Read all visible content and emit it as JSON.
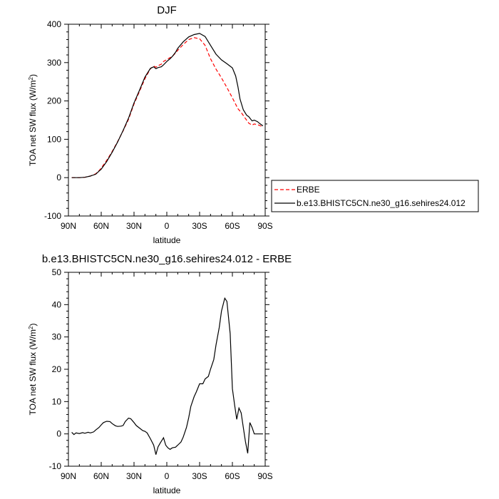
{
  "chart_data": [
    {
      "type": "line",
      "title": "DJF",
      "ylabel": "TOA net SW flux (W/m",
      "ylabel_sup": "2",
      "ylabel_tail": ")",
      "xlabel": "latitude",
      "xlim": [
        90,
        -90
      ],
      "ylim": [
        -100,
        400
      ],
      "x_ticks": [
        90,
        60,
        30,
        0,
        -30,
        -60,
        -90
      ],
      "x_tick_labels": [
        "90N",
        "60N",
        "30N",
        "0",
        "30S",
        "60S",
        "90S"
      ],
      "y_ticks": [
        -100,
        0,
        100,
        200,
        300,
        400
      ],
      "y_tick_labels": [
        "-100",
        "0",
        "100",
        "200",
        "300",
        "400"
      ],
      "legend_position": "outside-right",
      "series": [
        {
          "name": "ERBE",
          "color": "#ff0000",
          "dash": true,
          "x": [
            87,
            80,
            75,
            70,
            65,
            62,
            60,
            55,
            50,
            45,
            40,
            35,
            30,
            25,
            20,
            15,
            12,
            10,
            8,
            5,
            3,
            0,
            -3,
            -5,
            -8,
            -10,
            -15,
            -20,
            -25,
            -30,
            -35,
            -40,
            -45,
            -50,
            -55,
            -60,
            -65,
            -68,
            -70,
            -73,
            -75,
            -78,
            -80,
            -83,
            -85,
            -88
          ],
          "values": [
            0,
            0,
            1,
            4,
            10,
            18,
            25,
            45,
            68,
            94,
            122,
            152,
            192,
            225,
            258,
            284,
            291,
            288,
            292,
            296,
            303,
            308,
            313,
            316,
            325,
            332,
            347,
            360,
            365,
            362,
            345,
            310,
            283,
            260,
            235,
            208,
            180,
            170,
            162,
            150,
            142,
            137,
            140,
            138,
            136,
            132
          ]
        },
        {
          "name": "b.e13.BHISTC5CN.ne30_g16.sehires24.012",
          "color": "#000000",
          "dash": false,
          "x": [
            87,
            80,
            75,
            70,
            65,
            62,
            60,
            55,
            50,
            45,
            40,
            35,
            30,
            25,
            20,
            15,
            12,
            10,
            8,
            5,
            3,
            0,
            -3,
            -5,
            -8,
            -10,
            -15,
            -20,
            -25,
            -30,
            -35,
            -40,
            -45,
            -50,
            -55,
            -60,
            -63,
            -65,
            -67,
            -70,
            -73,
            -75,
            -78,
            -80,
            -83,
            -85,
            -88
          ],
          "values": [
            0,
            0,
            1,
            4,
            9,
            17,
            22,
            42,
            66,
            93,
            123,
            155,
            195,
            228,
            262,
            285,
            289,
            284,
            287,
            289,
            294,
            303,
            310,
            316,
            327,
            337,
            354,
            367,
            373,
            376,
            368,
            345,
            322,
            307,
            297,
            286,
            265,
            238,
            205,
            177,
            163,
            159,
            148,
            150,
            146,
            141,
            135
          ]
        }
      ]
    },
    {
      "type": "line",
      "title": "b.e13.BHISTC5CN.ne30_g16.sehires24.012 - ERBE",
      "ylabel": "TOA net SW flux (W/m",
      "ylabel_sup": "2",
      "ylabel_tail": ")",
      "xlabel": "latitude",
      "xlim": [
        90,
        -90
      ],
      "ylim": [
        -10,
        50
      ],
      "x_ticks": [
        90,
        60,
        30,
        0,
        -30,
        -60,
        -90
      ],
      "x_tick_labels": [
        "90N",
        "60N",
        "30N",
        "0",
        "30S",
        "60S",
        "90S"
      ],
      "y_ticks": [
        -10,
        0,
        10,
        20,
        30,
        40,
        50
      ],
      "y_tick_labels": [
        "-10",
        "0",
        "10",
        "20",
        "30",
        "40",
        "50"
      ],
      "series": [
        {
          "color": "#000000",
          "dash": false,
          "x": [
            87,
            85,
            83,
            80,
            77,
            75,
            72,
            70,
            67,
            65,
            62,
            60,
            58,
            55,
            52,
            50,
            47,
            45,
            42,
            40,
            38,
            35,
            33,
            30,
            28,
            25,
            22,
            20,
            18,
            15,
            12,
            10,
            8,
            6,
            3,
            1,
            -1,
            -3,
            -5,
            -8,
            -10,
            -13,
            -15,
            -18,
            -20,
            -22,
            -25,
            -27,
            -30,
            -33,
            -35,
            -38,
            -40,
            -43,
            -45,
            -48,
            -50,
            -53,
            -55,
            -58,
            -60,
            -62,
            -64,
            -66,
            -68,
            -70,
            -72,
            -74,
            -76,
            -78,
            -80,
            -82,
            -84,
            -86,
            -88
          ],
          "values": [
            0.5,
            -0.2,
            0.3,
            0.1,
            0.4,
            0.2,
            0.5,
            0.3,
            0.6,
            1.2,
            2.0,
            2.8,
            3.5,
            3.9,
            3.8,
            3.2,
            2.5,
            2.3,
            2.4,
            2.6,
            3.8,
            4.9,
            4.7,
            3.5,
            2.6,
            1.8,
            1.0,
            0.8,
            0.3,
            -1.5,
            -3.5,
            -6.4,
            -4.0,
            -2.8,
            -1.2,
            -3.5,
            -4.3,
            -4.8,
            -4.3,
            -4.1,
            -3.5,
            -2.5,
            -1.0,
            2.0,
            5.0,
            8.5,
            11.5,
            13.0,
            15.5,
            15.5,
            17.0,
            17.8,
            20.0,
            23.0,
            27.5,
            33.0,
            38.0,
            42.0,
            41.0,
            31.0,
            14.0,
            9.0,
            4.5,
            8.0,
            6.5,
            2.0,
            -2.5,
            -6.0,
            3.5,
            2.0,
            0.0,
            0.0,
            0.0,
            0.0,
            0.0
          ]
        }
      ]
    }
  ]
}
